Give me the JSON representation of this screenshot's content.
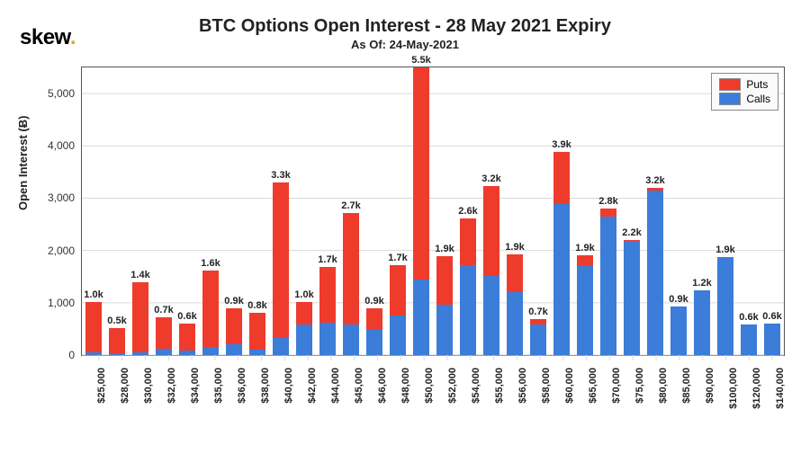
{
  "brand": {
    "name": "skew",
    "dot": "."
  },
  "chart": {
    "type": "stacked-bar",
    "title": "BTC Options Open Interest - 28 May 2021 Expiry",
    "subtitle": "As Of: 24-May-2021",
    "ylabel": "Open Interest (Ƀ)",
    "y_axis": {
      "min": 0,
      "max": 5500,
      "ticks": [
        0,
        1000,
        2000,
        3000,
        4000,
        5000
      ],
      "tick_labels": [
        "0",
        "1,000",
        "2,000",
        "3,000",
        "4,000",
        "5,000"
      ]
    },
    "colors": {
      "puts": "#ef3b2c",
      "calls": "#3b7dd8",
      "grid": "#d9d9d9",
      "axis": "#555555",
      "bg": "#ffffff"
    },
    "legend": {
      "items": [
        {
          "key": "puts",
          "label": "Puts"
        },
        {
          "key": "calls",
          "label": "Calls"
        }
      ]
    },
    "bar_width_ratio": 0.72,
    "fonts": {
      "title_size": 20,
      "subtitle_size": 13,
      "axis_label_size": 13,
      "tick_size": 12,
      "bar_label_size": 11
    },
    "categories": [
      "$25,000",
      "$28,000",
      "$30,000",
      "$32,000",
      "$34,000",
      "$35,000",
      "$36,000",
      "$38,000",
      "$40,000",
      "$42,000",
      "$44,000",
      "$45,000",
      "$46,000",
      "$48,000",
      "$50,000",
      "$52,000",
      "$54,000",
      "$55,000",
      "$56,000",
      "$58,000",
      "$60,000",
      "$65,000",
      "$70,000",
      "$75,000",
      "$80,000",
      "$85,000",
      "$90,000",
      "$100,000",
      "$120,000",
      "$140,000"
    ],
    "series": {
      "calls": [
        50,
        40,
        60,
        120,
        80,
        150,
        200,
        100,
        320,
        580,
        620,
        580,
        480,
        750,
        1450,
        970,
        1720,
        1520,
        1200,
        580,
        2880,
        1700,
        2650,
        2180,
        3150,
        930,
        1240,
        1880,
        590,
        600
      ],
      "puts": [
        970,
        480,
        1340,
        600,
        520,
        1470,
        700,
        700,
        2980,
        430,
        1060,
        2130,
        420,
        970,
        4050,
        920,
        900,
        1720,
        730,
        100,
        1010,
        200,
        150,
        20,
        50,
        0,
        0,
        0,
        0,
        0
      ]
    },
    "bar_labels": [
      "1.0k",
      "0.5k",
      "1.4k",
      "0.7k",
      "0.6k",
      "1.6k",
      "0.9k",
      "0.8k",
      "3.3k",
      "1.0k",
      "1.7k",
      "2.7k",
      "0.9k",
      "1.7k",
      "5.5k",
      "1.9k",
      "2.6k",
      "3.2k",
      "1.9k",
      "0.7k",
      "3.9k",
      "1.9k",
      "2.8k",
      "2.2k",
      "3.2k",
      "0.9k",
      "1.2k",
      "1.9k",
      "0.6k",
      "0.6k"
    ]
  }
}
